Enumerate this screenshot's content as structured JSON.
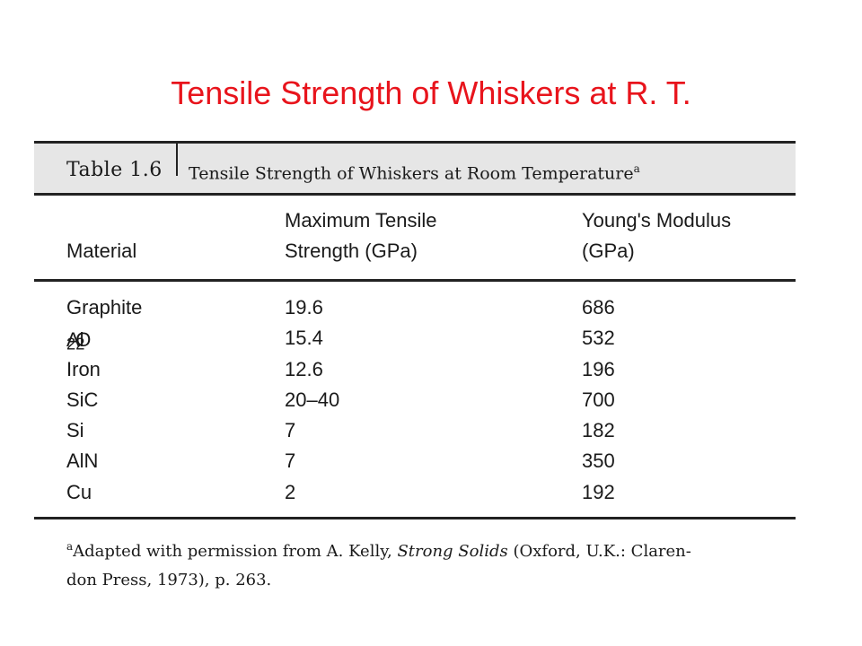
{
  "slide": {
    "title": "Tensile Strength of Whiskers at R. T."
  },
  "table": {
    "label": "Table 1.6",
    "caption": "Tensile Strength of Whiskers at Room Temperature",
    "caption_mark": "a",
    "headers": {
      "material": "Material",
      "strength_line1": "Maximum Tensile",
      "strength_line2": "Strength (GPa)",
      "modulus_line1": "Young's Modulus",
      "modulus_line2": "(GPa)"
    },
    "rows": [
      {
        "material": "Graphite",
        "strength": "19.6",
        "modulus": "686"
      },
      {
        "material_base": "Al",
        "material_sub1": "2",
        "material_mid": "O",
        "material_sub2": "2",
        "strength": "15.4",
        "modulus": "532"
      },
      {
        "material": "Iron",
        "strength": "12.6",
        "modulus": "196"
      },
      {
        "material": "SiC",
        "strength": "20–40",
        "modulus": "700"
      },
      {
        "material": "Si",
        "strength": "7",
        "modulus": "182"
      },
      {
        "material": "AlN",
        "strength": "7",
        "modulus": "350"
      },
      {
        "material": "Cu",
        "strength": "2",
        "modulus": "192"
      }
    ],
    "footnote": {
      "mark": "a",
      "before": "Adapted with permission from A. Kelly, ",
      "book": "Strong Solids",
      "after_line1": " (Oxford, U.K.: Claren-",
      "line2": "don Press, 1973), p. 263."
    }
  }
}
